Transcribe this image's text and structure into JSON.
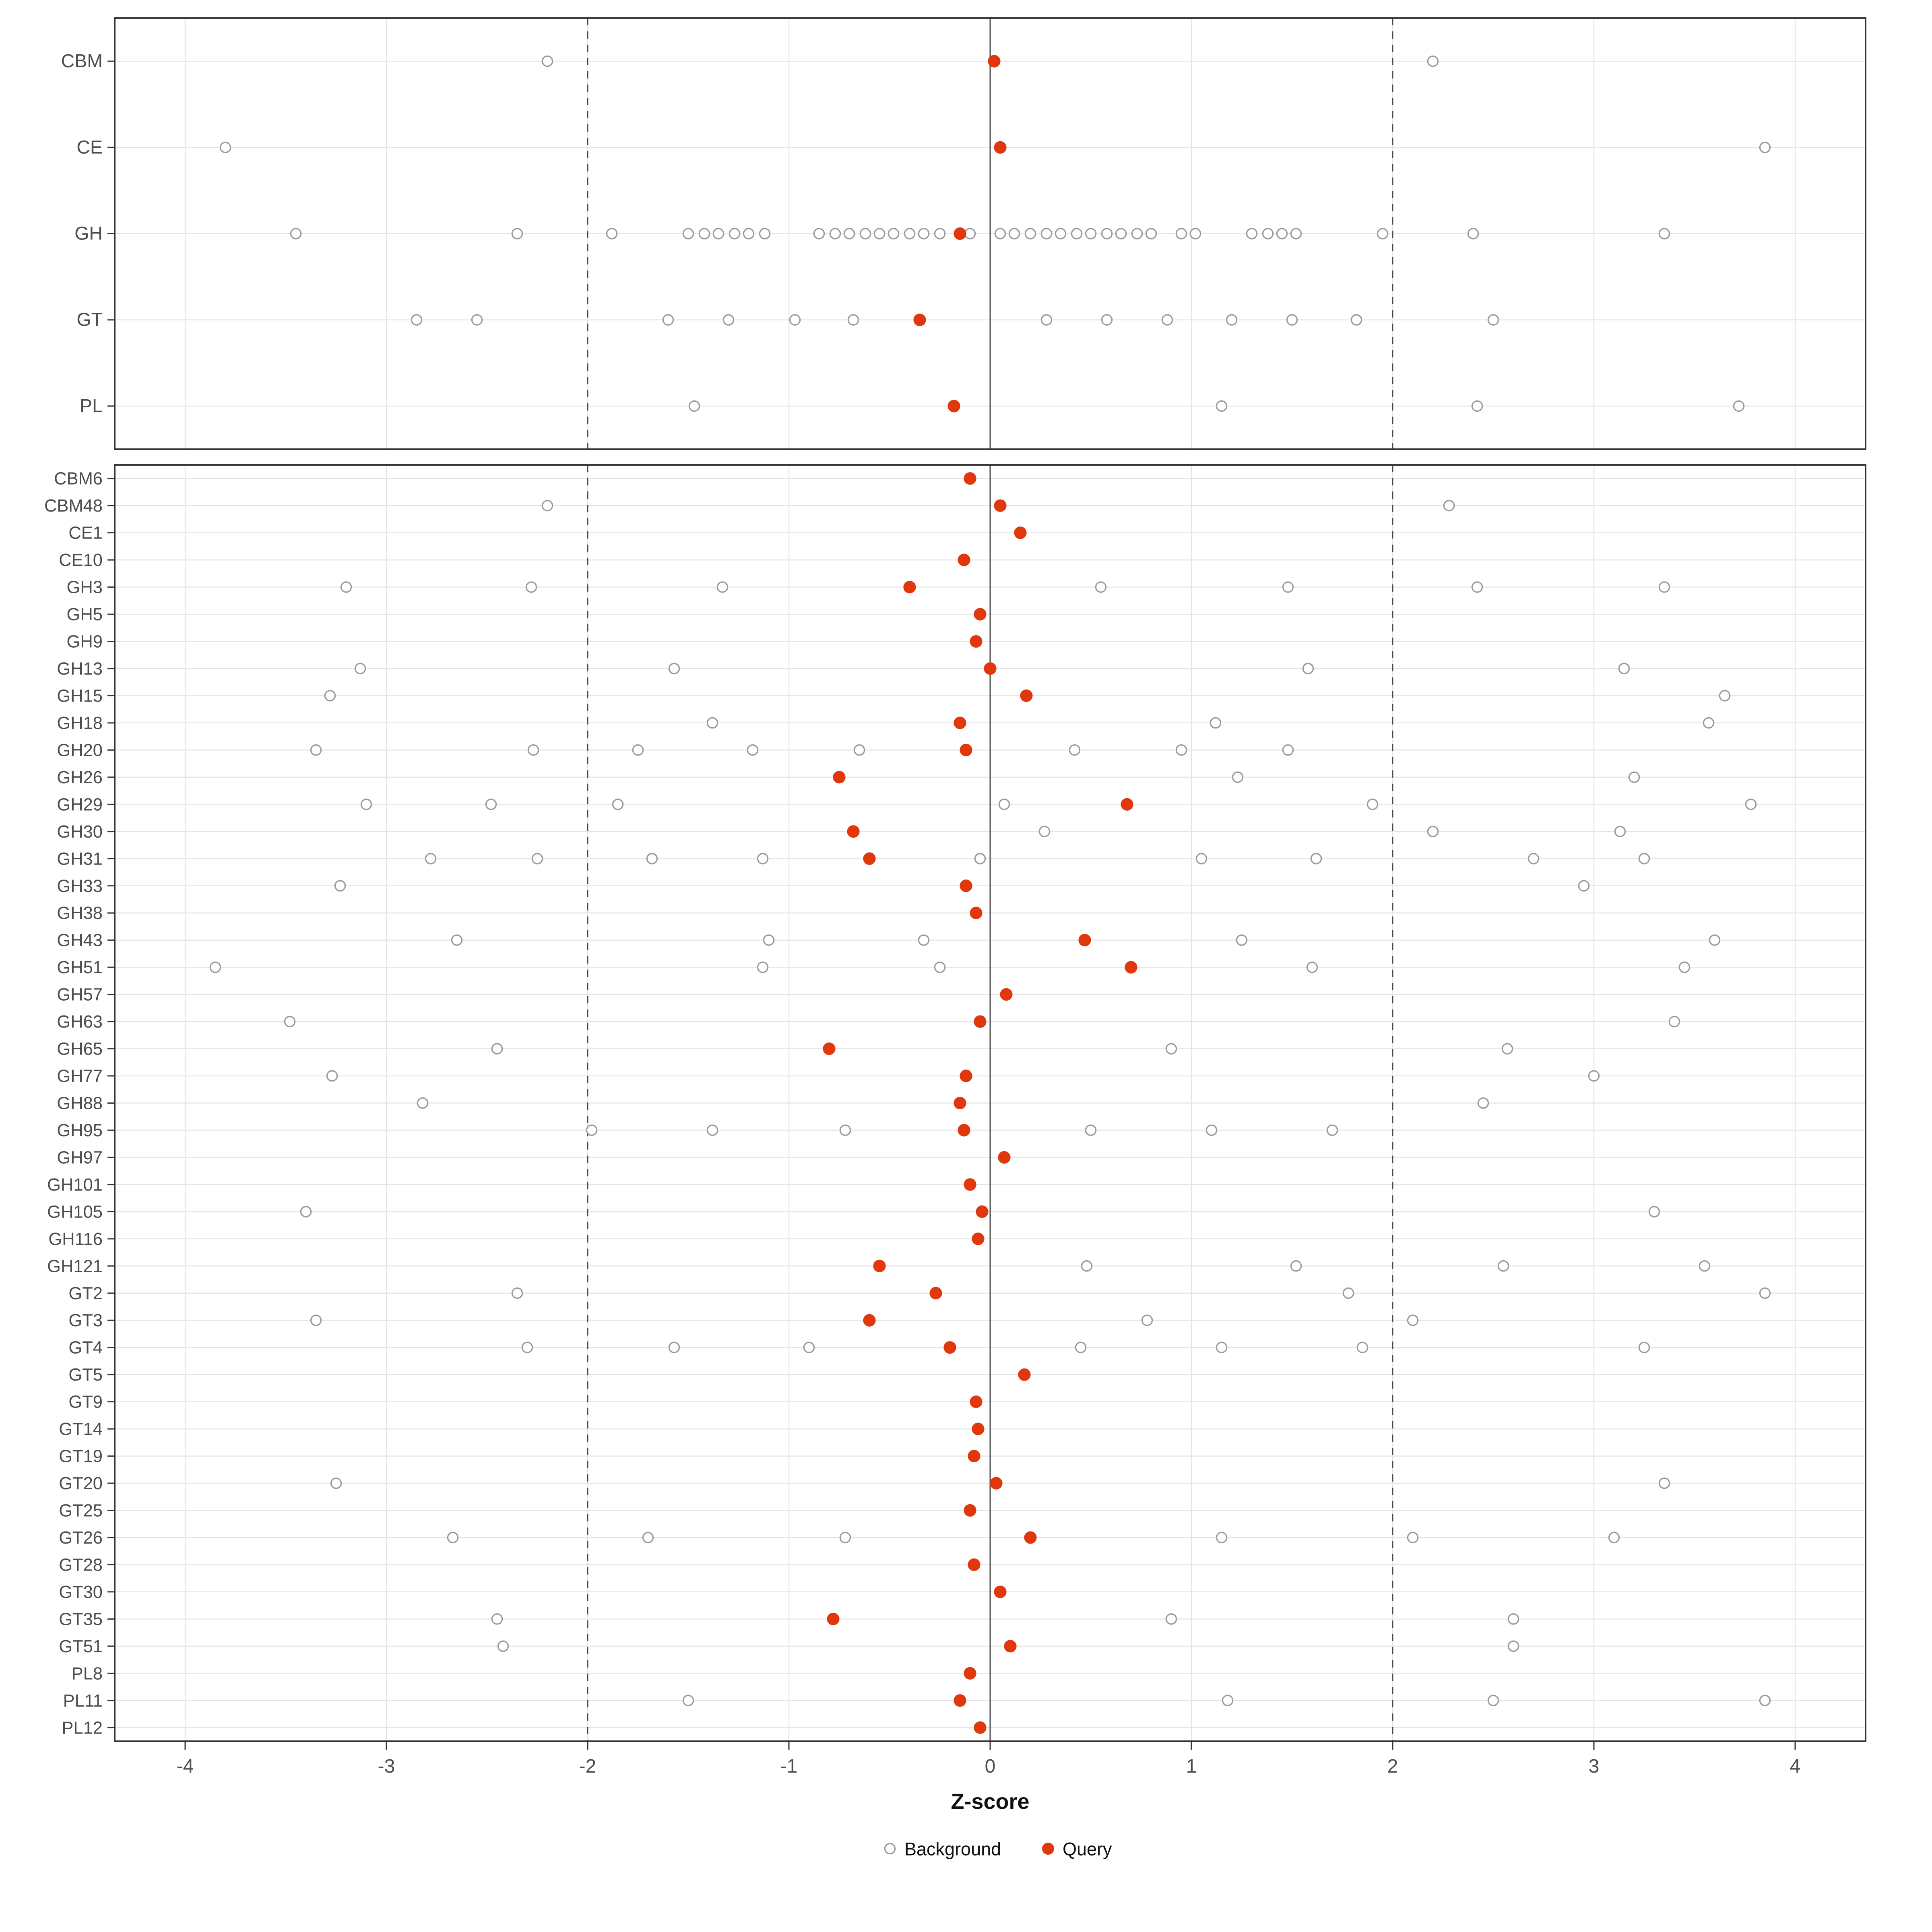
{
  "chart_data": {
    "type": "scatter",
    "title": "",
    "xlabel": "Z-score",
    "ylabel": "",
    "xlim": [
      -4.35,
      4.35
    ],
    "x_ticks": [
      -4,
      -3,
      -2,
      -1,
      0,
      1,
      2,
      3,
      4
    ],
    "grid": true,
    "legend_position": "bottom",
    "reference_lines": {
      "solid": [
        0
      ],
      "dashed": [
        -2,
        2
      ]
    },
    "legend": {
      "background": "Background",
      "query": "Query"
    },
    "colors": {
      "query": "#e0380c",
      "background_stroke": "#9b9b9b",
      "grid": "#e4e4e4",
      "axis_text": "#4d4d4d",
      "border": "#333333",
      "reference": "#4a4a4a"
    },
    "panels": [
      {
        "name": "families",
        "rows": [
          {
            "label": "CBM",
            "query": 0.02,
            "background": [
              -2.2,
              2.2
            ]
          },
          {
            "label": "CE",
            "query": 0.05,
            "background": [
              -3.8,
              3.85
            ]
          },
          {
            "label": "GH",
            "query": -0.15,
            "background": [
              -3.45,
              -2.35,
              -1.88,
              -1.5,
              -1.42,
              -1.35,
              -1.27,
              -1.2,
              -1.12,
              -0.85,
              -0.77,
              -0.7,
              -0.62,
              -0.55,
              -0.48,
              -0.4,
              -0.33,
              -0.25,
              -0.1,
              0.05,
              0.12,
              0.2,
              0.28,
              0.35,
              0.43,
              0.5,
              0.58,
              0.65,
              0.73,
              0.8,
              0.95,
              1.02,
              1.3,
              1.38,
              1.45,
              1.52,
              1.95,
              2.4,
              3.35
            ]
          },
          {
            "label": "GT",
            "query": -0.35,
            "background": [
              -2.85,
              -2.55,
              -1.6,
              -1.3,
              -0.97,
              -0.68,
              0.28,
              0.58,
              0.88,
              1.2,
              1.5,
              1.82,
              2.5
            ]
          },
          {
            "label": "PL",
            "query": -0.18,
            "background": [
              -1.47,
              1.15,
              2.42,
              3.72
            ]
          }
        ]
      },
      {
        "name": "subfamilies",
        "rows": [
          {
            "label": "CBM6",
            "query": -0.1,
            "background": []
          },
          {
            "label": "CBM48",
            "query": 0.05,
            "background": [
              -2.2,
              2.28
            ]
          },
          {
            "label": "CE1",
            "query": 0.15,
            "background": []
          },
          {
            "label": "CE10",
            "query": -0.13,
            "background": []
          },
          {
            "label": "GH3",
            "query": -0.4,
            "background": [
              -3.2,
              -2.28,
              -1.33,
              0.55,
              1.48,
              2.42,
              3.35
            ]
          },
          {
            "label": "GH5",
            "query": -0.05,
            "background": []
          },
          {
            "label": "GH9",
            "query": -0.07,
            "background": []
          },
          {
            "label": "GH13",
            "query": 0.0,
            "background": [
              -3.13,
              -1.57,
              1.58,
              3.15
            ]
          },
          {
            "label": "GH15",
            "query": 0.18,
            "background": [
              -3.28,
              3.65
            ]
          },
          {
            "label": "GH18",
            "query": -0.15,
            "background": [
              -1.38,
              1.12,
              3.57
            ]
          },
          {
            "label": "GH20",
            "query": -0.12,
            "background": [
              -3.35,
              -2.27,
              -1.75,
              -1.18,
              -0.65,
              0.42,
              0.95,
              1.48
            ]
          },
          {
            "label": "GH26",
            "query": -0.75,
            "background": [
              1.23,
              3.2
            ]
          },
          {
            "label": "GH29",
            "query": 0.68,
            "background": [
              -3.1,
              -2.48,
              -1.85,
              0.07,
              1.9,
              3.78
            ]
          },
          {
            "label": "GH30",
            "query": -0.68,
            "background": [
              0.27,
              2.2,
              3.13
            ]
          },
          {
            "label": "GH31",
            "query": -0.6,
            "background": [
              -2.78,
              -2.25,
              -1.68,
              -1.13,
              -0.05,
              1.05,
              1.62,
              2.7,
              3.25
            ]
          },
          {
            "label": "GH33",
            "query": -0.12,
            "background": [
              -3.23,
              2.95
            ]
          },
          {
            "label": "GH38",
            "query": -0.07,
            "background": []
          },
          {
            "label": "GH43",
            "query": 0.47,
            "background": [
              -2.65,
              -1.1,
              -0.33,
              1.25,
              3.6
            ]
          },
          {
            "label": "GH51",
            "query": 0.7,
            "background": [
              -3.85,
              -1.13,
              -0.25,
              1.6,
              3.45
            ]
          },
          {
            "label": "GH57",
            "query": 0.08,
            "background": []
          },
          {
            "label": "GH63",
            "query": -0.05,
            "background": [
              -3.48,
              3.4
            ]
          },
          {
            "label": "GH65",
            "query": -0.8,
            "background": [
              -2.45,
              0.9,
              2.57
            ]
          },
          {
            "label": "GH77",
            "query": -0.12,
            "background": [
              -3.27,
              3.0
            ]
          },
          {
            "label": "GH88",
            "query": -0.15,
            "background": [
              -2.82,
              2.45
            ]
          },
          {
            "label": "GH95",
            "query": -0.13,
            "background": [
              -1.98,
              -1.38,
              -0.72,
              0.5,
              1.1,
              1.7
            ]
          },
          {
            "label": "GH97",
            "query": 0.07,
            "background": []
          },
          {
            "label": "GH101",
            "query": -0.1,
            "background": []
          },
          {
            "label": "GH105",
            "query": -0.04,
            "background": [
              -3.4,
              3.3
            ]
          },
          {
            "label": "GH116",
            "query": -0.06,
            "background": []
          },
          {
            "label": "GH121",
            "query": -0.55,
            "background": [
              0.48,
              1.52,
              2.55,
              3.55
            ]
          },
          {
            "label": "GT2",
            "query": -0.27,
            "background": [
              -2.35,
              1.78,
              3.85
            ]
          },
          {
            "label": "GT3",
            "query": -0.6,
            "background": [
              -3.35,
              0.78,
              2.1
            ]
          },
          {
            "label": "GT4",
            "query": -0.2,
            "background": [
              -2.3,
              -1.57,
              -0.9,
              0.45,
              1.15,
              1.85,
              3.25
            ]
          },
          {
            "label": "GT5",
            "query": 0.17,
            "background": []
          },
          {
            "label": "GT9",
            "query": -0.07,
            "background": []
          },
          {
            "label": "GT14",
            "query": -0.06,
            "background": []
          },
          {
            "label": "GT19",
            "query": -0.08,
            "background": []
          },
          {
            "label": "GT20",
            "query": 0.03,
            "background": [
              -3.25,
              3.35
            ]
          },
          {
            "label": "GT25",
            "query": -0.1,
            "background": []
          },
          {
            "label": "GT26",
            "query": 0.2,
            "background": [
              -2.67,
              -1.7,
              -0.72,
              1.15,
              2.1,
              3.1
            ]
          },
          {
            "label": "GT28",
            "query": -0.08,
            "background": []
          },
          {
            "label": "GT30",
            "query": 0.05,
            "background": []
          },
          {
            "label": "GT35",
            "query": -0.78,
            "background": [
              -2.45,
              0.9,
              2.6
            ]
          },
          {
            "label": "GT51",
            "query": 0.1,
            "background": [
              -2.42,
              2.6
            ]
          },
          {
            "label": "PL8",
            "query": -0.1,
            "background": []
          },
          {
            "label": "PL11",
            "query": -0.15,
            "background": [
              -1.5,
              1.18,
              2.5,
              3.85
            ]
          },
          {
            "label": "PL12",
            "query": -0.05,
            "background": []
          }
        ]
      }
    ]
  }
}
